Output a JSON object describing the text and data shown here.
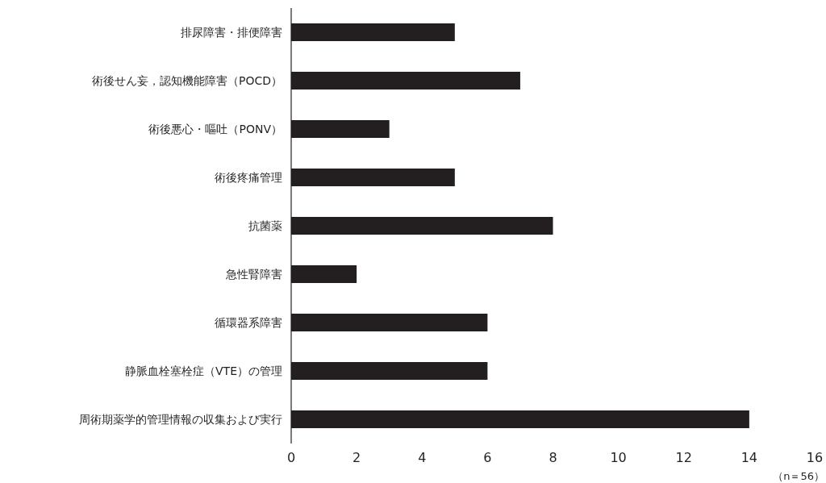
{
  "chart_data": {
    "type": "bar",
    "orientation": "horizontal",
    "categories": [
      "排尿障害・排便障害",
      "術後せん妄，認知機能障害（POCD）",
      "術後悪心・嘔吐（PONV）",
      "術後疼痛管理",
      "抗菌薬",
      "急性腎障害",
      "循環器系障害",
      "静脈血栓塞栓症（VTE）の管理",
      "周術期薬学的管理情報の収集および実行"
    ],
    "values": [
      5,
      7,
      3,
      5,
      8,
      2,
      6,
      6,
      14
    ],
    "color": "#231f20",
    "xlim": [
      0,
      16
    ],
    "xticks": [
      0,
      2,
      4,
      6,
      8,
      10,
      12,
      14,
      16
    ],
    "annotations": [
      "（n＝56）"
    ]
  }
}
